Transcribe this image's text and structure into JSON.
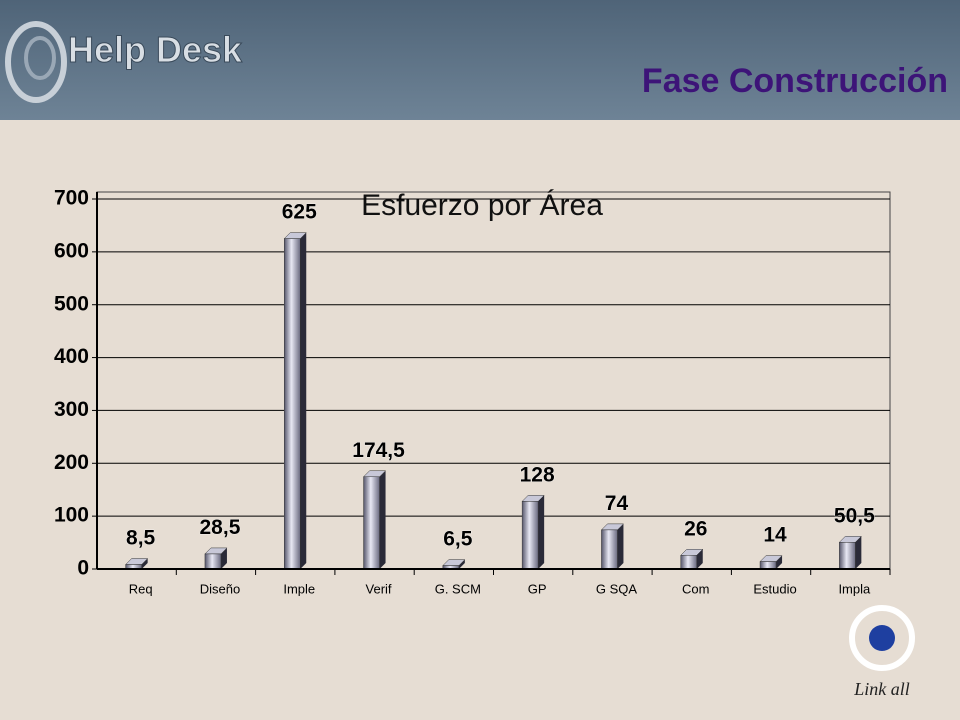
{
  "header": {
    "logo": "Help Desk",
    "title": "Fase Construcción"
  },
  "footer_logo": "Link all",
  "chart_data": {
    "type": "bar3d",
    "title": "Esfuerzo por Área",
    "categories": [
      "Req",
      "Diseño",
      "Imple",
      "Verif",
      "G. SCM",
      "GP",
      "G SQA",
      "Com",
      "Estudio",
      "Impla"
    ],
    "values": [
      8.5,
      28.5,
      625,
      174.5,
      6.5,
      128,
      74,
      26,
      14,
      50.5
    ],
    "value_labels": [
      "8,5",
      "28,5",
      "625",
      "174,5",
      "6,5",
      "128",
      "74",
      "26",
      "14",
      "50,5"
    ],
    "ylim": [
      0,
      700
    ],
    "yticks": [
      0,
      100,
      200,
      300,
      400,
      500,
      600,
      700
    ],
    "grid": true
  }
}
